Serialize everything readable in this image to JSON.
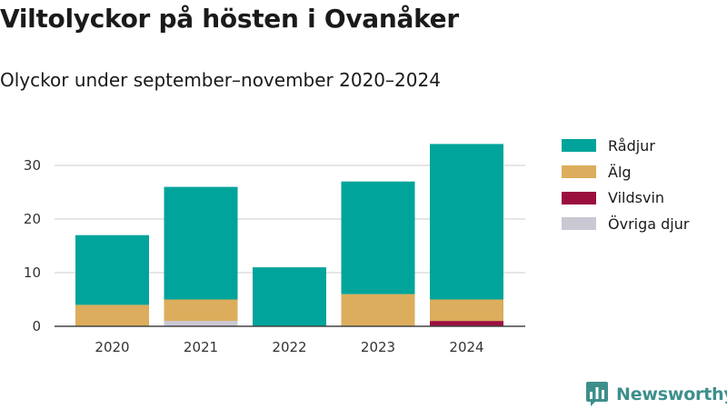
{
  "title": "Viltolyckor på hösten i Ovanåker",
  "subtitle": "Olyckor under september–november 2020–2024",
  "brand": {
    "name": "Newsworthy",
    "icon": "newsworthy-chart-icon",
    "color": "#3d8f8c"
  },
  "chart_data": {
    "type": "bar",
    "stacked": true,
    "title": "Viltolyckor på hösten i Ovanåker",
    "subtitle": "Olyckor under september–november 2020–2024",
    "categories": [
      "2020",
      "2021",
      "2022",
      "2023",
      "2024"
    ],
    "series": [
      {
        "name": "Övriga djur",
        "color": "#c9c8d3",
        "values": [
          0,
          1,
          0,
          0,
          0
        ]
      },
      {
        "name": "Vildsvin",
        "color": "#9b0f3f",
        "values": [
          0,
          0,
          0,
          0,
          1
        ]
      },
      {
        "name": "Älg",
        "color": "#dcad5c",
        "values": [
          4,
          4,
          0,
          6,
          4
        ]
      },
      {
        "name": "Rådjur",
        "color": "#00a49a",
        "values": [
          13,
          21,
          11,
          21,
          29
        ]
      }
    ],
    "ylim": [
      0,
      35
    ],
    "yticks": [
      0,
      10,
      20,
      30
    ],
    "grid": true,
    "legend_position": "right",
    "xlabel": "",
    "ylabel": ""
  },
  "legend": [
    {
      "label": "Rådjur",
      "color": "#00a49a"
    },
    {
      "label": "Älg",
      "color": "#dcad5c"
    },
    {
      "label": "Vildsvin",
      "color": "#9b0f3f"
    },
    {
      "label": "Övriga djur",
      "color": "#c9c8d3"
    }
  ]
}
